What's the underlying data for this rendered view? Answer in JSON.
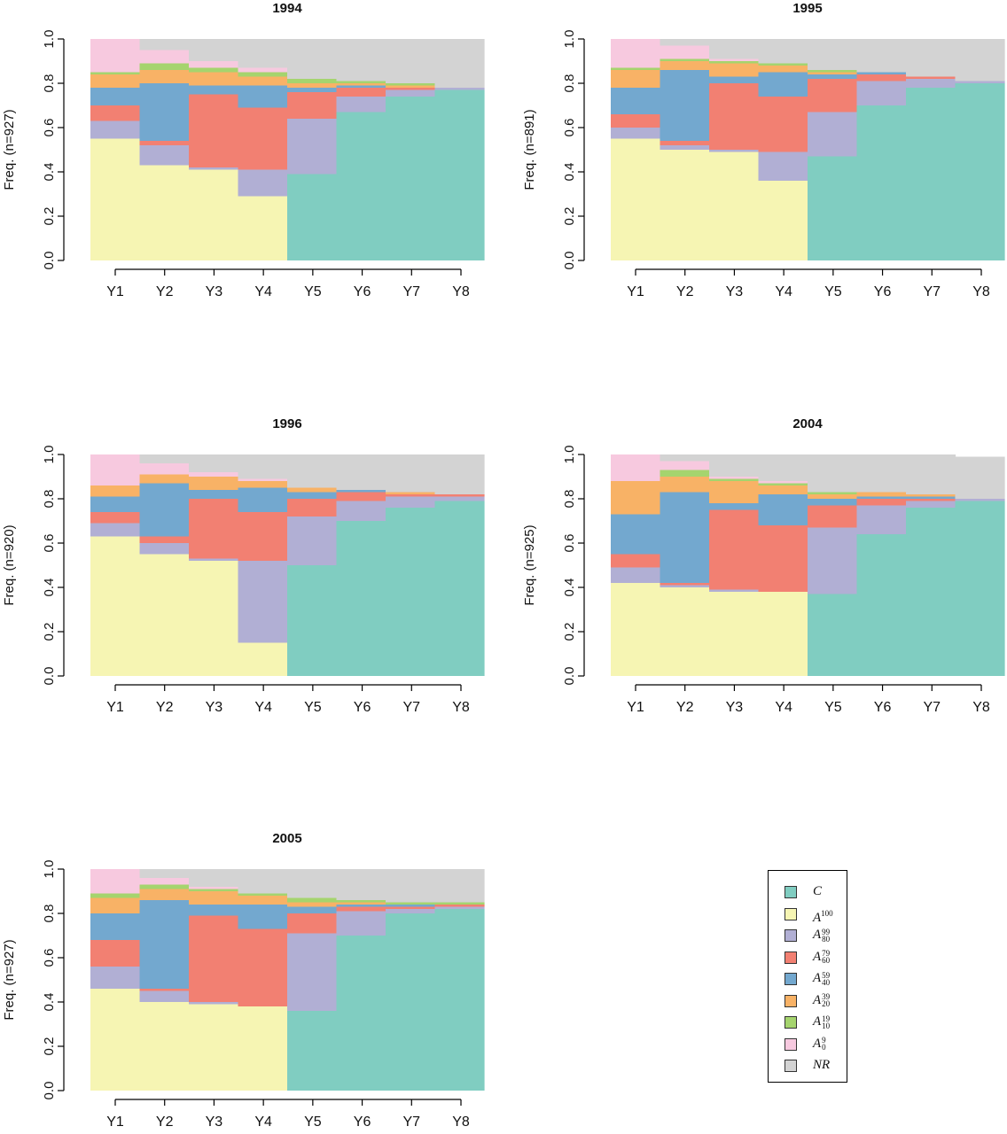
{
  "legend": {
    "items": [
      {
        "key": "C",
        "base": "C",
        "sup": "",
        "sub": "",
        "color": "#80CDC1"
      },
      {
        "key": "A100",
        "base": "A",
        "sup": "100",
        "sub": "",
        "color": "#F6F5B3"
      },
      {
        "key": "A80_99",
        "base": "A",
        "sup": "99",
        "sub": "80",
        "color": "#B1AFD4"
      },
      {
        "key": "A60_79",
        "base": "A",
        "sup": "79",
        "sub": "60",
        "color": "#F28072"
      },
      {
        "key": "A40_59",
        "base": "A",
        "sup": "59",
        "sub": "40",
        "color": "#73A8CF"
      },
      {
        "key": "A20_39",
        "base": "A",
        "sup": "39",
        "sub": "20",
        "color": "#F8B266"
      },
      {
        "key": "A10_19",
        "base": "A",
        "sup": "19",
        "sub": "10",
        "color": "#A5D46E"
      },
      {
        "key": "A0_9",
        "base": "A",
        "sup": "9",
        "sub": "0",
        "color": "#F7C9DF"
      },
      {
        "key": "NR",
        "base": "NR",
        "sup": "",
        "sub": "",
        "color": "#D3D3D3"
      }
    ]
  },
  "chart_data": [
    {
      "type": "area",
      "title": "1994",
      "ylabel": "Freq. (n=927)",
      "ylim": [
        0,
        1
      ],
      "yticks": [
        "0.0",
        "0.2",
        "0.4",
        "0.6",
        "0.8",
        "1.0"
      ],
      "categories": [
        "Y1",
        "Y2",
        "Y3",
        "Y4",
        "Y5",
        "Y6",
        "Y7",
        "Y8"
      ],
      "stacked": true,
      "series": [
        {
          "key": "C",
          "values": [
            0,
            0,
            0,
            0,
            0.39,
            0.67,
            0.74,
            0.77
          ]
        },
        {
          "key": "A100",
          "values": [
            0.55,
            0.43,
            0.41,
            0.29,
            0,
            0,
            0,
            0
          ]
        },
        {
          "key": "A80_99",
          "values": [
            0.08,
            0.09,
            0.01,
            0.12,
            0.25,
            0.07,
            0.03,
            0.01
          ]
        },
        {
          "key": "A60_79",
          "values": [
            0.07,
            0.02,
            0.33,
            0.28,
            0.12,
            0.04,
            0.01,
            0.0
          ]
        },
        {
          "key": "A40_59",
          "values": [
            0.08,
            0.26,
            0.04,
            0.1,
            0.02,
            0.01,
            0.0,
            0.0
          ]
        },
        {
          "key": "A20_39",
          "values": [
            0.06,
            0.06,
            0.06,
            0.04,
            0.02,
            0.01,
            0.01,
            0.0
          ]
        },
        {
          "key": "A10_19",
          "values": [
            0.01,
            0.03,
            0.02,
            0.02,
            0.02,
            0.01,
            0.01,
            0.0
          ]
        },
        {
          "key": "A0_9",
          "values": [
            0.15,
            0.06,
            0.03,
            0.02,
            0.0,
            0.0,
            0.0,
            0.0
          ]
        },
        {
          "key": "NR",
          "values": [
            0,
            0.05,
            0.1,
            0.13,
            0.18,
            0.19,
            0.2,
            0.22
          ]
        }
      ]
    },
    {
      "type": "area",
      "title": "1995",
      "ylabel": "Freq. (n=891)",
      "ylim": [
        0,
        1
      ],
      "yticks": [
        "0.0",
        "0.2",
        "0.4",
        "0.6",
        "0.8",
        "1.0"
      ],
      "categories": [
        "Y1",
        "Y2",
        "Y3",
        "Y4",
        "Y5",
        "Y6",
        "Y7",
        "Y8"
      ],
      "stacked": true,
      "series": [
        {
          "key": "C",
          "values": [
            0,
            0,
            0,
            0,
            0.47,
            0.7,
            0.78,
            0.8
          ]
        },
        {
          "key": "A100",
          "values": [
            0.55,
            0.5,
            0.49,
            0.36,
            0,
            0,
            0,
            0
          ]
        },
        {
          "key": "A80_99",
          "values": [
            0.05,
            0.02,
            0.01,
            0.13,
            0.2,
            0.11,
            0.04,
            0.01
          ]
        },
        {
          "key": "A60_79",
          "values": [
            0.06,
            0.02,
            0.3,
            0.25,
            0.15,
            0.03,
            0.01,
            0.0
          ]
        },
        {
          "key": "A40_59",
          "values": [
            0.12,
            0.32,
            0.03,
            0.11,
            0.02,
            0.01,
            0.0,
            0.0
          ]
        },
        {
          "key": "A20_39",
          "values": [
            0.08,
            0.04,
            0.06,
            0.03,
            0.01,
            0.0,
            0.0,
            0.0
          ]
        },
        {
          "key": "A10_19",
          "values": [
            0.01,
            0.01,
            0.01,
            0.01,
            0.01,
            0.0,
            0.0,
            0.0
          ]
        },
        {
          "key": "A0_9",
          "values": [
            0.13,
            0.06,
            0.01,
            0.0,
            0.0,
            0.0,
            0.0,
            0.0
          ]
        },
        {
          "key": "NR",
          "values": [
            0,
            0.03,
            0.09,
            0.11,
            0.14,
            0.15,
            0.17,
            0.19
          ]
        }
      ]
    },
    {
      "type": "area",
      "title": "1996",
      "ylabel": "Freq. (n=920)",
      "ylim": [
        0,
        1
      ],
      "yticks": [
        "0.0",
        "0.2",
        "0.4",
        "0.6",
        "0.8",
        "1.0"
      ],
      "categories": [
        "Y1",
        "Y2",
        "Y3",
        "Y4",
        "Y5",
        "Y6",
        "Y7",
        "Y8"
      ],
      "stacked": true,
      "series": [
        {
          "key": "C",
          "values": [
            0,
            0,
            0,
            0,
            0.5,
            0.7,
            0.76,
            0.79
          ]
        },
        {
          "key": "A100",
          "values": [
            0.63,
            0.55,
            0.52,
            0.15,
            0,
            0,
            0,
            0
          ]
        },
        {
          "key": "A80_99",
          "values": [
            0.06,
            0.05,
            0.01,
            0.37,
            0.22,
            0.09,
            0.05,
            0.02
          ]
        },
        {
          "key": "A60_79",
          "values": [
            0.05,
            0.03,
            0.27,
            0.22,
            0.08,
            0.04,
            0.01,
            0.01
          ]
        },
        {
          "key": "A40_59",
          "values": [
            0.07,
            0.24,
            0.04,
            0.11,
            0.03,
            0.01,
            0.0,
            0.0
          ]
        },
        {
          "key": "A20_39",
          "values": [
            0.05,
            0.04,
            0.06,
            0.03,
            0.02,
            0.0,
            0.01,
            0.0
          ]
        },
        {
          "key": "A10_19",
          "values": [
            0.0,
            0.0,
            0.0,
            0.0,
            0.0,
            0.0,
            0.0,
            0.0
          ]
        },
        {
          "key": "A0_9",
          "values": [
            0.14,
            0.05,
            0.02,
            0.01,
            0.0,
            0.0,
            0.0,
            0.0
          ]
        },
        {
          "key": "NR",
          "values": [
            0,
            0.04,
            0.08,
            0.11,
            0.15,
            0.16,
            0.17,
            0.18
          ]
        }
      ]
    },
    {
      "type": "area",
      "title": "2004",
      "ylabel": "Freq. (n=925)",
      "ylim": [
        0,
        1
      ],
      "yticks": [
        "0.0",
        "0.2",
        "0.4",
        "0.6",
        "0.8",
        "1.0"
      ],
      "categories": [
        "Y1",
        "Y2",
        "Y3",
        "Y4",
        "Y5",
        "Y6",
        "Y7",
        "Y8"
      ],
      "stacked": true,
      "series": [
        {
          "key": "C",
          "values": [
            0,
            0,
            0,
            0,
            0.37,
            0.64,
            0.76,
            0.79
          ]
        },
        {
          "key": "A100",
          "values": [
            0.42,
            0.4,
            0.38,
            0.38,
            0,
            0,
            0,
            0
          ]
        },
        {
          "key": "A80_99",
          "values": [
            0.07,
            0.01,
            0.01,
            0.0,
            0.3,
            0.13,
            0.03,
            0.01
          ]
        },
        {
          "key": "A60_79",
          "values": [
            0.06,
            0.01,
            0.36,
            0.3,
            0.1,
            0.03,
            0.01,
            0.0
          ]
        },
        {
          "key": "A40_59",
          "values": [
            0.18,
            0.41,
            0.03,
            0.14,
            0.03,
            0.01,
            0.01,
            0.0
          ]
        },
        {
          "key": "A20_39",
          "values": [
            0.15,
            0.07,
            0.1,
            0.04,
            0.02,
            0.02,
            0.01,
            0.0
          ]
        },
        {
          "key": "A10_19",
          "values": [
            0.0,
            0.03,
            0.01,
            0.01,
            0.01,
            0.0,
            0.0,
            0.0
          ]
        },
        {
          "key": "A0_9",
          "values": [
            0.12,
            0.04,
            0.01,
            0.01,
            0.0,
            0.0,
            0.0,
            0.0
          ]
        },
        {
          "key": "NR",
          "values": [
            0,
            0.03,
            0.1,
            0.12,
            0.17,
            0.17,
            0.18,
            0.19
          ]
        }
      ]
    },
    {
      "type": "area",
      "title": "2005",
      "ylabel": "Freq. (n=927)",
      "ylim": [
        0,
        1
      ],
      "yticks": [
        "0.0",
        "0.2",
        "0.4",
        "0.6",
        "0.8",
        "1.0"
      ],
      "categories": [
        "Y1",
        "Y2",
        "Y3",
        "Y4",
        "Y5",
        "Y6",
        "Y7",
        "Y8"
      ],
      "stacked": true,
      "series": [
        {
          "key": "C",
          "values": [
            0,
            0,
            0,
            0,
            0.36,
            0.7,
            0.8,
            0.82
          ]
        },
        {
          "key": "A100",
          "values": [
            0.46,
            0.4,
            0.39,
            0.38,
            0,
            0,
            0,
            0
          ]
        },
        {
          "key": "A80_99",
          "values": [
            0.1,
            0.05,
            0.01,
            0.0,
            0.35,
            0.11,
            0.02,
            0.01
          ]
        },
        {
          "key": "A60_79",
          "values": [
            0.12,
            0.01,
            0.39,
            0.35,
            0.09,
            0.02,
            0.01,
            0.01
          ]
        },
        {
          "key": "A40_59",
          "values": [
            0.12,
            0.4,
            0.05,
            0.11,
            0.03,
            0.01,
            0.01,
            0.0
          ]
        },
        {
          "key": "A20_39",
          "values": [
            0.07,
            0.05,
            0.06,
            0.04,
            0.02,
            0.01,
            0.0,
            0.0
          ]
        },
        {
          "key": "A10_19",
          "values": [
            0.02,
            0.02,
            0.01,
            0.01,
            0.02,
            0.01,
            0.01,
            0.01
          ]
        },
        {
          "key": "A0_9",
          "values": [
            0.11,
            0.03,
            0.01,
            0.0,
            0.0,
            0.0,
            0.0,
            0.0
          ]
        },
        {
          "key": "NR",
          "values": [
            0,
            0.04,
            0.08,
            0.11,
            0.13,
            0.14,
            0.15,
            0.15
          ]
        }
      ]
    }
  ]
}
